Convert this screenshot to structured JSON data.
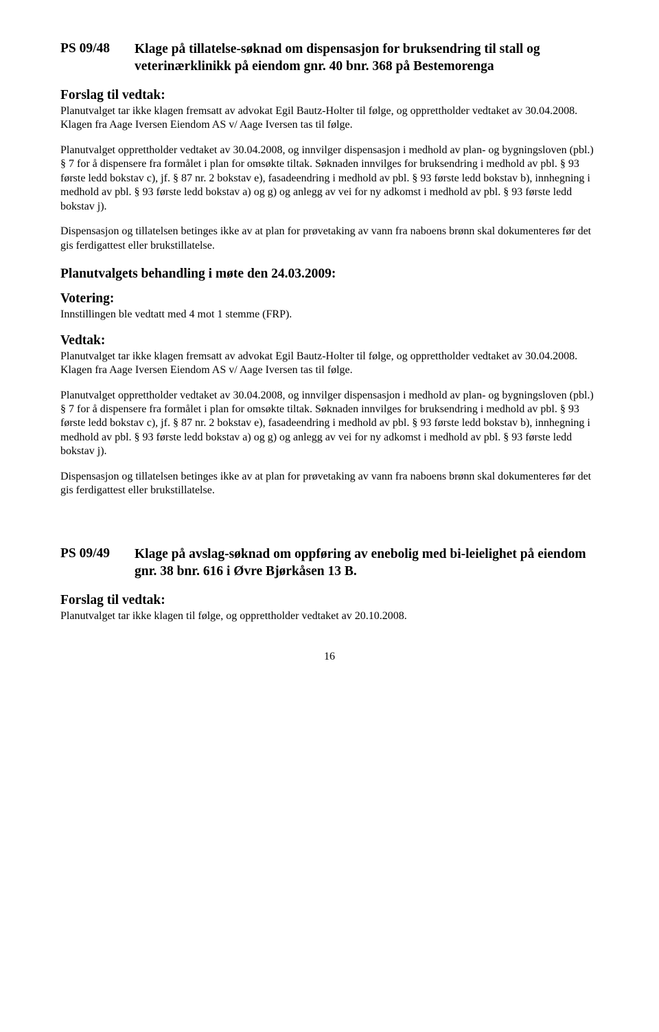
{
  "colors": {
    "text": "#000000",
    "background": "#ffffff"
  },
  "typography": {
    "family": "Times New Roman",
    "body_size_pt": 12,
    "heading_size_pt": 14.5,
    "heading_weight": "bold",
    "line_height": 1.28
  },
  "case1": {
    "number": "PS 09/48",
    "title": "Klage på tillatelse-søknad om dispensasjon for bruksendring til stall og veterinærklinikk på eiendom gnr. 40 bnr. 368 på Bestemorenga"
  },
  "proposal_heading": "Forslag til vedtak:",
  "proposal_p1": "Planutvalget tar ikke klagen fremsatt av advokat Egil Bautz-Holter til følge, og opprettholder vedtaket av 30.04.2008. Klagen fra Aage Iversen Eiendom AS v/ Aage Iversen tas til følge.",
  "proposal_p2": "Planutvalget opprettholder vedtaket av 30.04.2008, og innvilger dispensasjon i medhold av plan- og bygningsloven (pbl.) § 7 for å dispensere fra formålet i plan for omsøkte tiltak. Søknaden innvilges for bruksendring i medhold av pbl. § 93 første ledd bokstav c), jf. § 87 nr. 2 bokstav e), fasadeendring i medhold av pbl. § 93 første ledd bokstav b), innhegning i medhold av pbl. § 93 første ledd bokstav a) og g) og anlegg av vei for ny adkomst i medhold av pbl. § 93 første ledd bokstav j).",
  "proposal_p3": "Dispensasjon og tillatelsen betinges ikke av at plan for prøvetaking av vann fra naboens brønn skal dokumenteres før det gis ferdigattest eller brukstillatelse.",
  "meeting_heading": "Planutvalgets behandling i møte den 24.03.2009:",
  "voting_heading": "Votering:",
  "voting_text": "Innstillingen ble vedtatt med 4 mot 1 stemme (FRP).",
  "decision_heading": "Vedtak:",
  "decision_p1": "Planutvalget tar ikke klagen fremsatt av advokat Egil Bautz-Holter til følge, og opprettholder vedtaket av 30.04.2008. Klagen fra Aage Iversen Eiendom AS v/ Aage Iversen tas til følge.",
  "decision_p2": "Planutvalget opprettholder vedtaket av 30.04.2008, og innvilger dispensasjon i medhold av plan- og bygningsloven (pbl.) § 7 for å dispensere fra formålet i plan for omsøkte tiltak. Søknaden innvilges for bruksendring i medhold av pbl. § 93 første ledd bokstav c), jf. § 87 nr. 2 bokstav e), fasadeendring i medhold av pbl. § 93 første ledd bokstav b), innhegning i medhold av pbl. § 93 første ledd bokstav a) og g) og anlegg av vei for ny adkomst i medhold av pbl. § 93 første ledd bokstav j).",
  "decision_p3": "Dispensasjon og tillatelsen betinges ikke av at plan for prøvetaking av vann fra naboens brønn skal dokumenteres før det gis ferdigattest eller brukstillatelse.",
  "case2": {
    "number": "PS 09/49",
    "title": "Klage på avslag-søknad om oppføring av enebolig med bi-leielighet på eiendom gnr. 38 bnr. 616 i Øvre Bjørkåsen 13 B."
  },
  "proposal2_text": "Planutvalget tar ikke klagen til følge, og opprettholder vedtaket av 20.10.2008.",
  "page_number": "16"
}
